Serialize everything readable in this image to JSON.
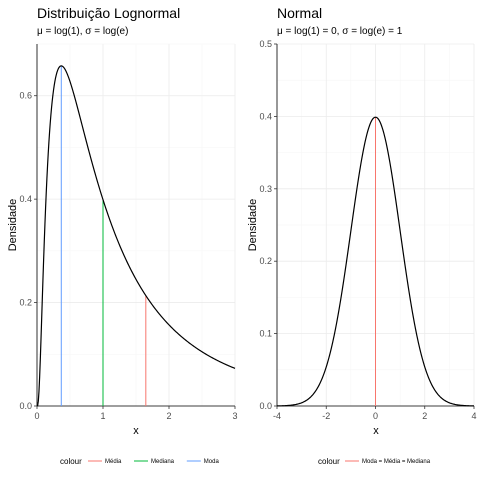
{
  "chart_data": [
    {
      "type": "line",
      "title": "Distribuição Lognormal",
      "subtitle": "μ = log(1), σ = log(e)",
      "xlabel": "x",
      "ylabel": "Densidade",
      "xlim": [
        0,
        3
      ],
      "ylim": [
        0,
        0.7
      ],
      "xticks": [
        0,
        1,
        2,
        3
      ],
      "xtick_labels": [
        "0",
        "1",
        "2",
        "3"
      ],
      "yticks": [
        0,
        0.2,
        0.4,
        0.6
      ],
      "ytick_labels": [
        "0.0",
        "0.2",
        "0.4",
        "0.6"
      ],
      "grid": true,
      "distribution": "lognormal",
      "params": {
        "mu": 0,
        "sigma": 1
      },
      "vlines": [
        {
          "name": "Média",
          "x": 1.6487,
          "color": "#F8766D"
        },
        {
          "name": "Mediana",
          "x": 1.0,
          "color": "#00BA38"
        },
        {
          "name": "Moda",
          "x": 0.3679,
          "color": "#619CFF"
        }
      ],
      "legend": {
        "title": "colour",
        "position": "bottom",
        "items": [
          {
            "label": "Média",
            "color": "#F8766D"
          },
          {
            "label": "Mediana",
            "color": "#00BA38"
          },
          {
            "label": "Moda",
            "color": "#619CFF"
          }
        ]
      }
    },
    {
      "type": "line",
      "title": "Normal",
      "subtitle": "μ = log(1) = 0, σ = log(e) = 1",
      "xlabel": "x",
      "ylabel": "Densidade",
      "xlim": [
        -4,
        4
      ],
      "ylim": [
        0,
        0.5
      ],
      "xticks": [
        -4,
        -2,
        0,
        2,
        4
      ],
      "xtick_labels": [
        "-4",
        "-2",
        "0",
        "2",
        "4"
      ],
      "yticks": [
        0,
        0.1,
        0.2,
        0.3,
        0.4,
        0.5
      ],
      "ytick_labels": [
        "0.0",
        "0.1",
        "0.2",
        "0.3",
        "0.4",
        "0.5"
      ],
      "grid": true,
      "distribution": "normal",
      "params": {
        "mu": 0,
        "sigma": 1
      },
      "vlines": [
        {
          "name": "Moda = Média = Mediana",
          "x": 0,
          "color": "#F8766D"
        }
      ],
      "legend": {
        "title": "colour",
        "position": "bottom",
        "items": [
          {
            "label": "Moda = Média = Mediana",
            "color": "#F8766D"
          }
        ]
      }
    }
  ]
}
